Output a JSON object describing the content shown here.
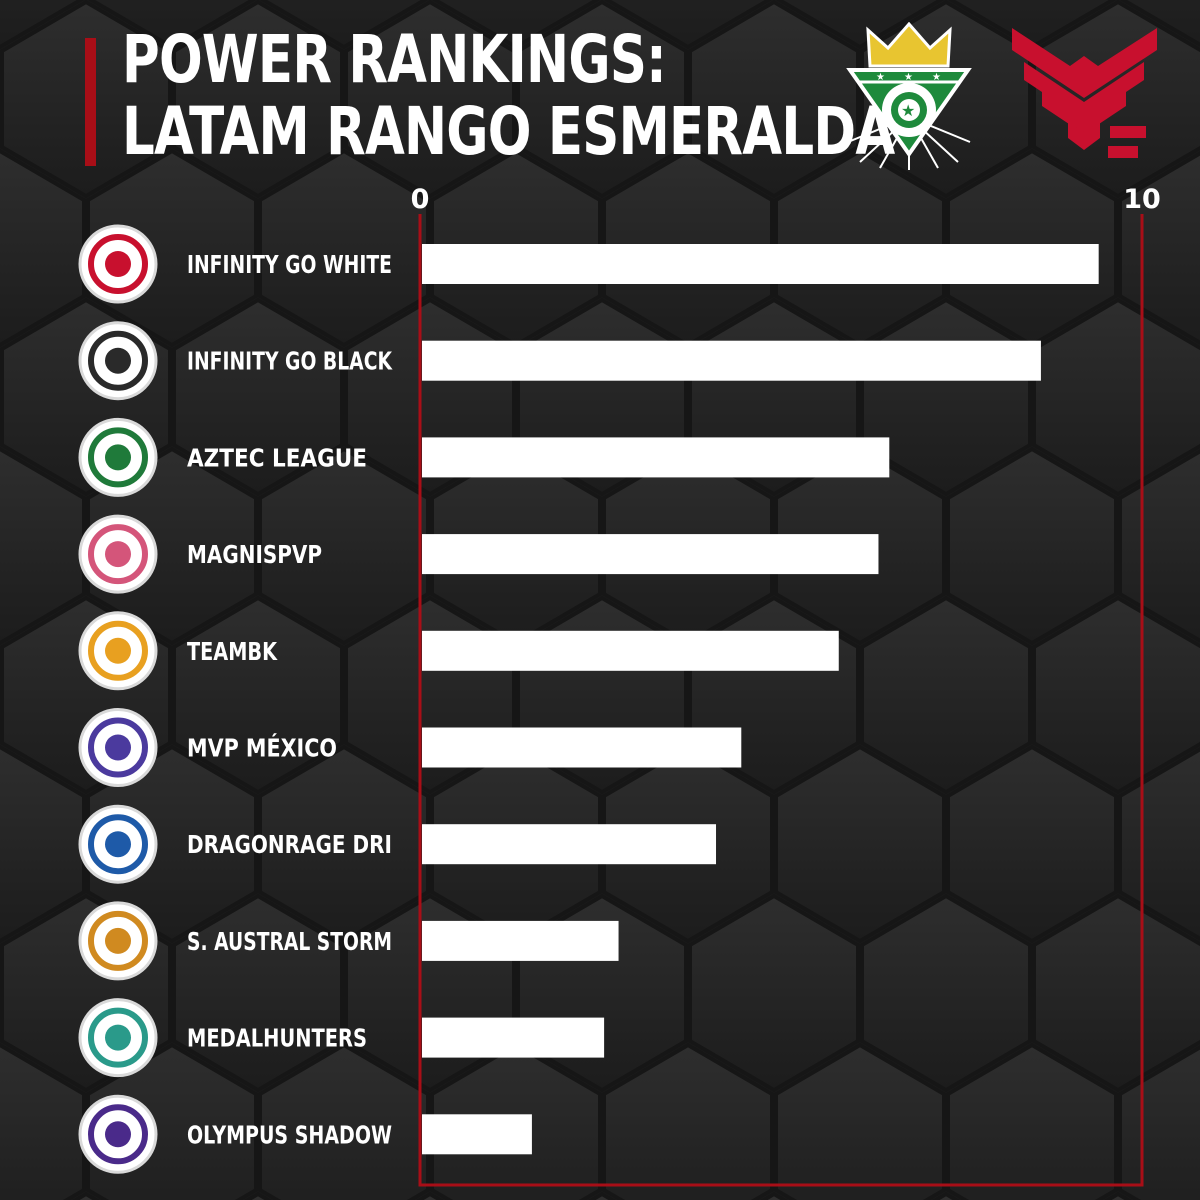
{
  "header": {
    "title_line1": "POWER RANKINGS:",
    "title_line2": "LATAM RANGO ESMERALDA"
  },
  "logos": [
    {
      "icon": "emerald-shield-crown-logo",
      "colors": {
        "primary": "#1e8a3c",
        "accent": "#e8c530"
      }
    },
    {
      "icon": "red-chevron-wings-logo",
      "colors": {
        "primary": "#c8102e"
      }
    }
  ],
  "colors": {
    "background": "#232323",
    "accent": "#a80e17",
    "bar": "#ffffff",
    "text": "#ffffff"
  },
  "chart_data": {
    "type": "bar",
    "orientation": "horizontal",
    "title": "POWER RANKINGS: LATAM RANGO ESMERALDA",
    "xlabel": "",
    "ylabel": "",
    "xlim": [
      0,
      10
    ],
    "x_ticks": [
      "0",
      "10"
    ],
    "grid": false,
    "legend": "none",
    "categories": [
      "INFINITY GO WHITE",
      "INFINITY GO BLACK",
      "AZTEC LEAGUE",
      "MAGNISPVP",
      "TEAMBK",
      "MVP MÉXICO",
      "DRAGONRAGE DRI",
      "S. AUSTRAL STORM",
      "MEDALHUNTERS",
      "OLYMPUS SHADOW"
    ],
    "values": [
      9.4,
      8.6,
      6.5,
      6.35,
      5.8,
      4.45,
      4.1,
      2.75,
      2.55,
      1.55
    ],
    "team_icons": [
      "infinity-white-logo-icon",
      "infinity-black-logo-icon",
      "aztec-league-logo-icon",
      "magnispvp-logo-icon",
      "teambk-logo-icon",
      "mvp-mexico-logo-icon",
      "dragonrage-logo-icon",
      "austral-storm-logo-icon",
      "medalhunters-logo-icon",
      "olympus-logo-icon"
    ],
    "team_icon_colors": [
      "#c8102e",
      "#2a2a2a",
      "#1f7a3a",
      "#d4557a",
      "#e8a020",
      "#4b3a9e",
      "#1e5aa8",
      "#d08a20",
      "#2a9a8a",
      "#4a2a8a"
    ]
  }
}
